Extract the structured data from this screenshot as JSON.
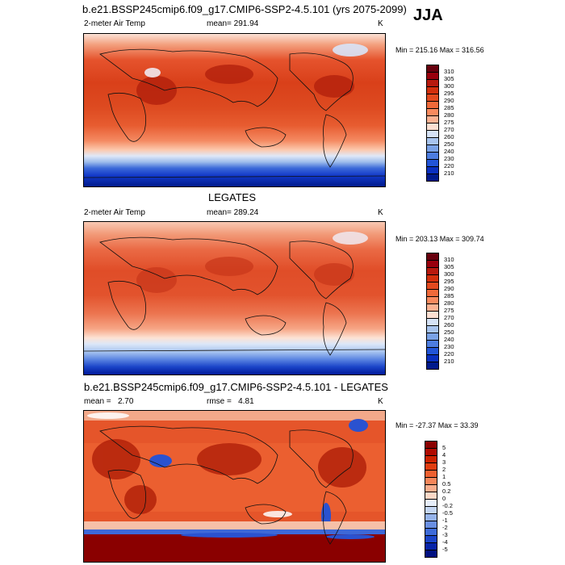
{
  "header": {
    "title": "b.e21.BSSP245cmip6.f09_g17.CMIP6-SSP2-4.5.101 (yrs 2075-2099)",
    "season": "JJA"
  },
  "panels": [
    {
      "variable": "2-meter Air Temp",
      "mean_text": "mean= 291.94",
      "units": "K",
      "minmax": "Min = 215.16 Max = 316.56",
      "colorbar": {
        "labels": [
          "310",
          "305",
          "300",
          "295",
          "290",
          "285",
          "280",
          "275",
          "270",
          "260",
          "250",
          "240",
          "230",
          "220",
          "210"
        ],
        "colors": [
          "#67000d",
          "#99000d",
          "#b81a0e",
          "#d3300d",
          "#e34a1f",
          "#f06a3a",
          "#f88a5e",
          "#fcb292",
          "#fde0d2",
          "#d6e3f7",
          "#a8c4ee",
          "#7aa2e6",
          "#4d7de0",
          "#2255d8",
          "#0a30c0",
          "#001a8c"
        ]
      }
    },
    {
      "panel_title": "LEGATES",
      "variable": "2-meter Air Temp",
      "mean_text": "mean= 289.24",
      "units": "K",
      "minmax": "Min = 203.13 Max = 309.74",
      "colorbar": {
        "labels": [
          "310",
          "305",
          "300",
          "295",
          "290",
          "285",
          "280",
          "275",
          "270",
          "260",
          "250",
          "240",
          "230",
          "220",
          "210"
        ],
        "colors": [
          "#67000d",
          "#99000d",
          "#b81a0e",
          "#d3300d",
          "#e34a1f",
          "#f06a3a",
          "#f88a5e",
          "#fcb292",
          "#fde0d2",
          "#d6e3f7",
          "#a8c4ee",
          "#7aa2e6",
          "#4d7de0",
          "#2255d8",
          "#0a30c0",
          "#001a8c"
        ]
      }
    },
    {
      "panel_title": "b.e21.BSSP245cmip6.f09_g17.CMIP6-SSP2-4.5.101 - LEGATES",
      "mean_text": "mean =   2.70",
      "rmse_text": "rmse =   4.81",
      "units": "K",
      "minmax": "Min = -27.37 Max =  33.39",
      "colorbar": {
        "labels": [
          "5",
          "4",
          "3",
          "2",
          "1",
          "0.5",
          "0.2",
          "0",
          "-0.2",
          "-0.5",
          "-1",
          "-2",
          "-3",
          "-4",
          "-5"
        ],
        "colors": [
          "#8a0000",
          "#b00a00",
          "#cc2200",
          "#e03d10",
          "#ee6030",
          "#f5865a",
          "#f9ad8c",
          "#fcd8c6",
          "#e6eefa",
          "#c4d6f3",
          "#95b3ea",
          "#6a8fe2",
          "#3e6bd8",
          "#1b44c8",
          "#0724a8",
          "#001080"
        ]
      }
    }
  ]
}
